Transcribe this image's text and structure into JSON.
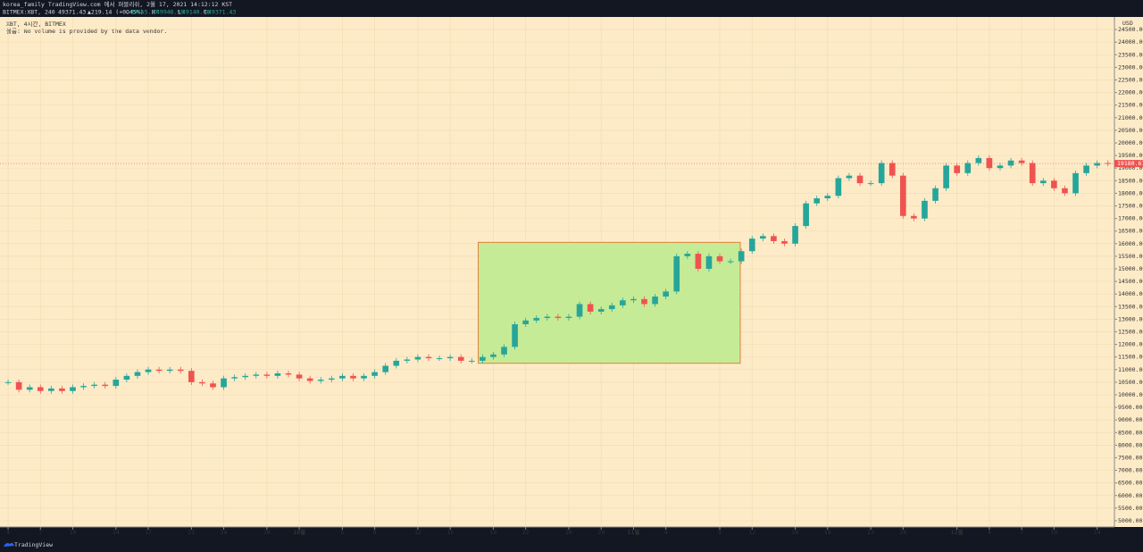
{
  "header": {
    "publish": "korea_family TradingView.com 에서 퍼블리쉬, 2월 17, 2021 14:12:12 KST",
    "symbol": "BITMEX:XBT, 240",
    "last": "49371.43",
    "change": "▲219.14 (+0.45%)",
    "o_label": "O",
    "o": "49655.27",
    "h_label": "H",
    "h": "49946.59",
    "l_label": "L",
    "l": "49140.96",
    "c_label": "C",
    "c": "49371.43"
  },
  "footer": {
    "brand": "TradingView"
  },
  "chart_data": {
    "type": "candlestick",
    "legend_title": "XBT, 4시간, BITMEX",
    "legend_note": "볼륨: No volume is provided by the data vendor.",
    "currency": "USD",
    "series": [
      {
        "name": "XBT",
        "up_color": "#26a69a",
        "down_color": "#ef5350",
        "values": [
          10500,
          10200,
          10300,
          10150,
          10250,
          10150,
          10300,
          10350,
          10400,
          10350,
          10600,
          10750,
          10900,
          11000,
          10950,
          11000,
          10950,
          10500,
          10450,
          10300,
          10650,
          10700,
          10750,
          10800,
          10750,
          10850,
          10800,
          10650,
          10550,
          10600,
          10650,
          10750,
          10650,
          10750,
          10900,
          11150,
          11350,
          11400,
          11500,
          11450,
          11450,
          11500,
          11350,
          11350,
          11500,
          11600,
          11900,
          12800,
          12950,
          13050,
          13100,
          13050,
          13100,
          13600,
          13300,
          13400,
          13550,
          13750,
          13800,
          13600,
          13900,
          14100,
          15500,
          15600,
          15000,
          15500,
          15300,
          15300,
          15700,
          16200,
          16300,
          16100,
          16000,
          16700,
          17600,
          17800,
          17900,
          18600,
          18700,
          18400,
          18400,
          19200,
          18700,
          17100,
          17000,
          17700,
          18200,
          19100,
          18800,
          19200,
          19400,
          19000,
          19100,
          19300,
          19200,
          18400,
          18500,
          18200,
          18000,
          18800,
          19100,
          19200,
          19180.67
        ]
      }
    ],
    "box": {
      "x": [
        43.6,
        67.9
      ],
      "y": [
        11250,
        16050
      ],
      "fill": "#c6eb96",
      "stroke": "#e0813a"
    },
    "xlim": [
      -0.75,
      102.6
    ],
    "ylim": [
      4750,
      25000
    ],
    "grid": true,
    "xticks": [
      {
        "value": 0,
        "label": "4"
      },
      {
        "value": 3,
        "label": "7"
      },
      {
        "value": 6,
        "label": "10"
      },
      {
        "value": 10,
        "label": "14"
      },
      {
        "value": 13,
        "label": "17"
      },
      {
        "value": 17,
        "label": "21"
      },
      {
        "value": 20,
        "label": "24"
      },
      {
        "value": 24,
        "label": "28"
      },
      {
        "value": 27,
        "label": "10월"
      },
      {
        "value": 31,
        "label": "5"
      },
      {
        "value": 34,
        "label": "8"
      },
      {
        "value": 38,
        "label": "12"
      },
      {
        "value": 41,
        "label": "15"
      },
      {
        "value": 45,
        "label": "19"
      },
      {
        "value": 48,
        "label": "22"
      },
      {
        "value": 52,
        "label": "26"
      },
      {
        "value": 55,
        "label": "29"
      },
      {
        "value": 58,
        "label": "11월"
      },
      {
        "value": 61,
        "label": "4"
      },
      {
        "value": 66,
        "label": "9"
      },
      {
        "value": 69,
        "label": "12"
      },
      {
        "value": 73,
        "label": "16"
      },
      {
        "value": 76,
        "label": "19"
      },
      {
        "value": 80,
        "label": "23"
      },
      {
        "value": 83,
        "label": "26"
      },
      {
        "value": 88,
        "label": "12월"
      },
      {
        "value": 91,
        "label": "4"
      },
      {
        "value": 94,
        "label": "7"
      },
      {
        "value": 97,
        "label": "10"
      },
      {
        "value": 101,
        "label": "14"
      }
    ],
    "yticks": [
      {
        "value": 5000,
        "label": "5000.00"
      },
      {
        "value": 5500,
        "label": "5500.00"
      },
      {
        "value": 6000,
        "label": "6000.00"
      },
      {
        "value": 6500,
        "label": "6500.00"
      },
      {
        "value": 7000,
        "label": "7000.00"
      },
      {
        "value": 7500,
        "label": "7500.00"
      },
      {
        "value": 8000,
        "label": "8000.00"
      },
      {
        "value": 8500,
        "label": "8500.00"
      },
      {
        "value": 9000,
        "label": "9000.00"
      },
      {
        "value": 9500,
        "label": "9500.00"
      },
      {
        "value": 10000,
        "label": "10000.00"
      },
      {
        "value": 10500,
        "label": "10500.00"
      },
      {
        "value": 11000,
        "label": "11000.00"
      },
      {
        "value": 11500,
        "label": "11500.00"
      },
      {
        "value": 12000,
        "label": "12000.00"
      },
      {
        "value": 12500,
        "label": "12500.00"
      },
      {
        "value": 13000,
        "label": "13000.00"
      },
      {
        "value": 13500,
        "label": "13500.00"
      },
      {
        "value": 14000,
        "label": "14000.00"
      },
      {
        "value": 14500,
        "label": "14500.00"
      },
      {
        "value": 15000,
        "label": "15000.00"
      },
      {
        "value": 15500,
        "label": "15500.00"
      },
      {
        "value": 16000,
        "label": "16000.00"
      },
      {
        "value": 16500,
        "label": "16500.00"
      },
      {
        "value": 17000,
        "label": "17000.00"
      },
      {
        "value": 17500,
        "label": "17500.00"
      },
      {
        "value": 18000,
        "label": "18000.00"
      },
      {
        "value": 18500,
        "label": "18500.00"
      },
      {
        "value": 19000,
        "label": "19000.00"
      },
      {
        "value": 19500,
        "label": "19500.00"
      },
      {
        "value": 20000,
        "label": "20000.00"
      },
      {
        "value": 20500,
        "label": "20500.00"
      },
      {
        "value": 21000,
        "label": "21000.00"
      },
      {
        "value": 21500,
        "label": "21500.00"
      },
      {
        "value": 22000,
        "label": "22000.00"
      },
      {
        "value": 22500,
        "label": "22500.00"
      },
      {
        "value": 23000,
        "label": "23000.00"
      },
      {
        "value": 23500,
        "label": "23500.00"
      },
      {
        "value": 24000,
        "label": "24000.00"
      },
      {
        "value": 24500,
        "label": "24500.00"
      }
    ]
  }
}
